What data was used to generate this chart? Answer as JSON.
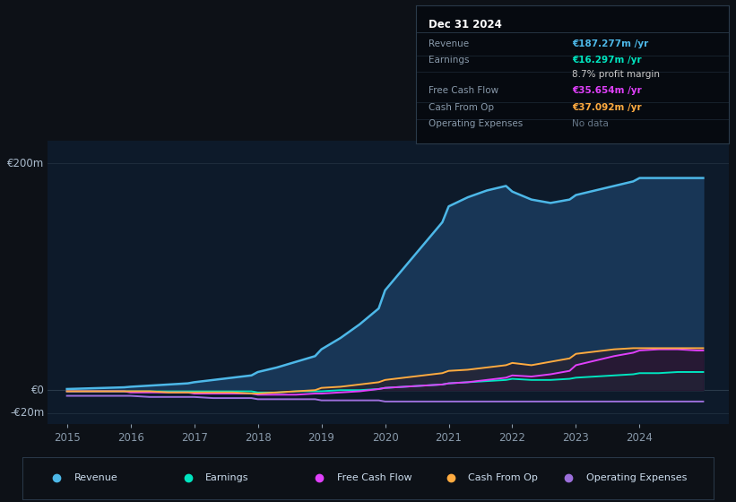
{
  "background_color": "#0d1117",
  "chart_bg": "#0d1a2a",
  "grid_color": "#1e2d3d",
  "years": [
    2015,
    2015.3,
    2015.6,
    2015.9,
    2016,
    2016.3,
    2016.6,
    2016.9,
    2017,
    2017.3,
    2017.6,
    2017.9,
    2018,
    2018.3,
    2018.6,
    2018.9,
    2019,
    2019.3,
    2019.6,
    2019.9,
    2020,
    2020.3,
    2020.6,
    2020.9,
    2021,
    2021.3,
    2021.6,
    2021.9,
    2022,
    2022.3,
    2022.6,
    2022.9,
    2023,
    2023.3,
    2023.6,
    2023.9,
    2024,
    2024.3,
    2024.6,
    2024.9,
    2025
  ],
  "revenue": [
    1,
    1.5,
    2,
    2.5,
    3,
    4,
    5,
    6,
    7,
    9,
    11,
    13,
    16,
    20,
    25,
    30,
    36,
    46,
    58,
    72,
    88,
    108,
    128,
    148,
    162,
    170,
    176,
    180,
    175,
    168,
    165,
    168,
    172,
    176,
    180,
    184,
    187,
    187,
    187,
    187,
    187
  ],
  "earnings": [
    -1,
    -1,
    -1,
    -1,
    -1,
    -1,
    -1,
    -1,
    -1,
    -1,
    -1,
    -1,
    -2,
    -2,
    -1,
    -1,
    -1,
    0,
    0,
    1,
    2,
    3,
    4,
    5,
    6,
    7,
    8,
    9,
    10,
    9,
    9,
    10,
    11,
    12,
    13,
    14,
    15,
    15,
    16,
    16,
    16
  ],
  "free_cash_flow": [
    -1,
    -1,
    -1,
    -1,
    -2,
    -2,
    -2,
    -2,
    -3,
    -3,
    -3,
    -3,
    -4,
    -4,
    -4,
    -3,
    -3,
    -2,
    -1,
    1,
    2,
    3,
    4,
    5,
    6,
    7,
    9,
    11,
    13,
    12,
    14,
    17,
    22,
    26,
    30,
    33,
    35,
    36,
    36,
    35,
    35
  ],
  "cash_from_op": [
    -1,
    -1,
    -1,
    -1,
    -1,
    -1,
    -2,
    -2,
    -2,
    -2,
    -2,
    -3,
    -3,
    -2,
    -1,
    0,
    2,
    3,
    5,
    7,
    9,
    11,
    13,
    15,
    17,
    18,
    20,
    22,
    24,
    22,
    25,
    28,
    32,
    34,
    36,
    37,
    37,
    37,
    37,
    37,
    37
  ],
  "operating_expenses": [
    -5,
    -5,
    -5,
    -5,
    -5,
    -6,
    -6,
    -6,
    -6,
    -7,
    -7,
    -7,
    -8,
    -8,
    -8,
    -8,
    -9,
    -9,
    -9,
    -9,
    -10,
    -10,
    -10,
    -10,
    -10,
    -10,
    -10,
    -10,
    -10,
    -10,
    -10,
    -10,
    -10,
    -10,
    -10,
    -10,
    -10,
    -10,
    -10,
    -10,
    -10
  ],
  "revenue_color": "#4db8e8",
  "earnings_color": "#00e5c0",
  "free_cash_flow_color": "#e040fb",
  "cash_from_op_color": "#ffab40",
  "operating_expenses_color": "#9c6fdb",
  "fill_revenue_color": "#1a3a5c",
  "fill_earnings_color": "#1a4040",
  "ylim": [
    -30,
    220
  ],
  "xlim": [
    2014.7,
    2025.4
  ],
  "xticks": [
    2015,
    2016,
    2017,
    2018,
    2019,
    2020,
    2021,
    2022,
    2023,
    2024
  ],
  "info_box": {
    "date": "Dec 31 2024",
    "rows": [
      {
        "label": "Revenue",
        "value": "€187.277m /yr",
        "value_color": "#4db8e8",
        "label_color": "#8899aa"
      },
      {
        "label": "Earnings",
        "value": "€16.297m /yr",
        "value_color": "#00e5c0",
        "label_color": "#8899aa"
      },
      {
        "label": "",
        "value": "8.7% profit margin",
        "value_color": "#cccccc",
        "label_color": "#8899aa"
      },
      {
        "label": "Free Cash Flow",
        "value": "€35.654m /yr",
        "value_color": "#e040fb",
        "label_color": "#8899aa"
      },
      {
        "label": "Cash From Op",
        "value": "€37.092m /yr",
        "value_color": "#ffab40",
        "label_color": "#8899aa"
      },
      {
        "label": "Operating Expenses",
        "value": "No data",
        "value_color": "#667788",
        "label_color": "#8899aa"
      }
    ]
  },
  "legend": [
    {
      "label": "Revenue",
      "color": "#4db8e8"
    },
    {
      "label": "Earnings",
      "color": "#00e5c0"
    },
    {
      "label": "Free Cash Flow",
      "color": "#e040fb"
    },
    {
      "label": "Cash From Op",
      "color": "#ffab40"
    },
    {
      "label": "Operating Expenses",
      "color": "#9c6fdb"
    }
  ]
}
